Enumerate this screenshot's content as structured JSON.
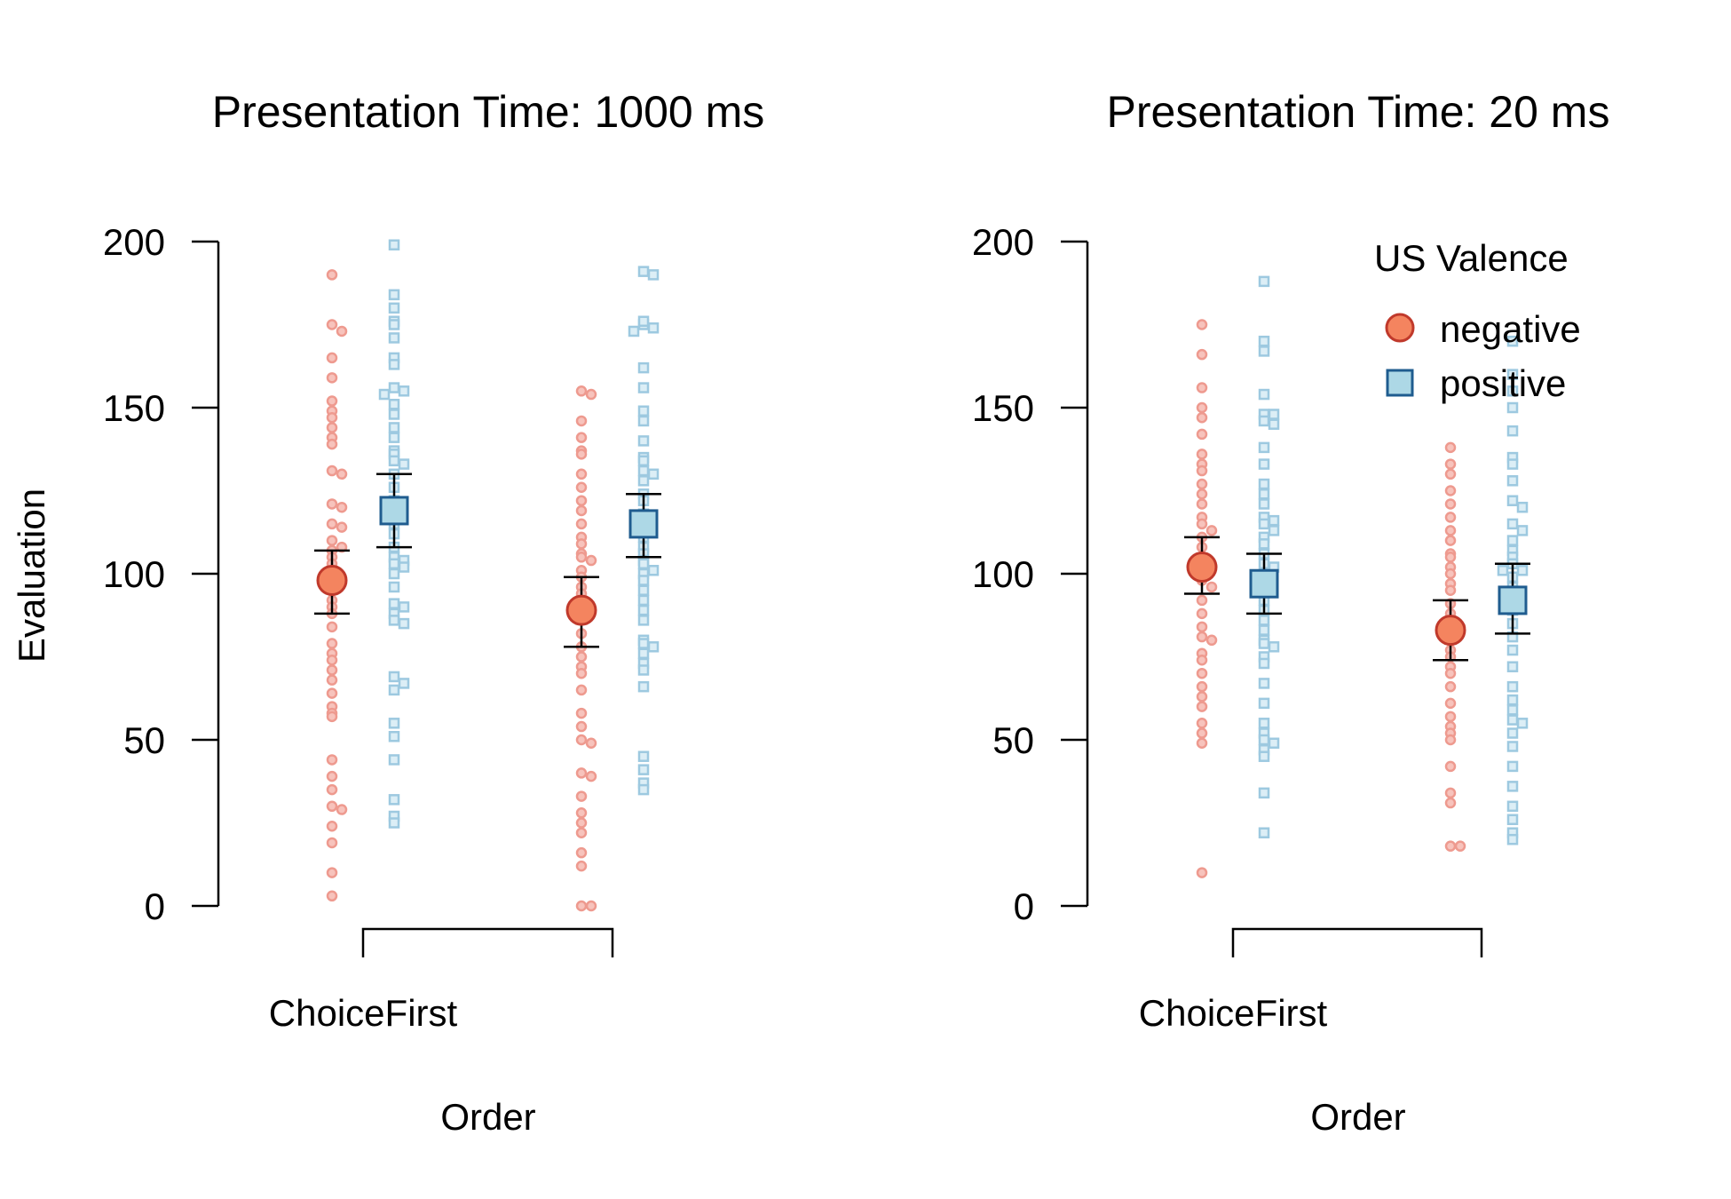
{
  "figure": {
    "ylabel": "Evaluation",
    "xlabel": "Order",
    "legend": {
      "title": "US Valence",
      "placement": "top-right of right panel",
      "entries": [
        {
          "label": "negative",
          "marker": "circle",
          "color": "#F4845F",
          "stroke": "#C0392B"
        },
        {
          "label": "positive",
          "marker": "square",
          "color": "#ADD8E6",
          "stroke": "#1F5C8F"
        }
      ]
    },
    "colors": {
      "negative_points": "#EE9A8F",
      "positive_points": "#9DC9E0",
      "negative_mean_fill": "#F4845F",
      "negative_mean_stroke": "#C0392B",
      "positive_mean_fill": "#ADD8E6",
      "positive_mean_stroke": "#1F5C8F",
      "errorbar": "#000000",
      "axis": "#000000"
    }
  },
  "chart_data": [
    {
      "type": "scatter",
      "title": "Presentation Time: 1000 ms",
      "xlabel": "Order",
      "ylabel": "Evaluation",
      "ylim": [
        0,
        200
      ],
      "yticks": [
        0,
        50,
        100,
        150,
        200
      ],
      "categories": [
        "ChoiceFirst",
        ""
      ],
      "category_tick_labels_shown": [
        "ChoiceFirst"
      ],
      "grid": false,
      "series": [
        {
          "name": "negative",
          "means": [
            98,
            89
          ],
          "error_low": [
            88,
            78
          ],
          "error_high": [
            107,
            99
          ],
          "points": [
            [
              190,
              175,
              173,
              165,
              159,
              152,
              149,
              147,
              144,
              141,
              139,
              131,
              130,
              121,
              120,
              115,
              114,
              110,
              108,
              107,
              105,
              103,
              100,
              98,
              95,
              92,
              90,
              88,
              84,
              79,
              76,
              74,
              71,
              68,
              64,
              60,
              58,
              57,
              44,
              39,
              35,
              30,
              29,
              24,
              19,
              10,
              3
            ],
            [
              155,
              154,
              146,
              141,
              137,
              136,
              130,
              126,
              122,
              119,
              115,
              111,
              109,
              106,
              105,
              104,
              101,
              99,
              96,
              94,
              92,
              90,
              87,
              86,
              82,
              78,
              75,
              72,
              70,
              65,
              58,
              54,
              50,
              49,
              40,
              39,
              33,
              28,
              25,
              22,
              16,
              12,
              0,
              0
            ]
          ]
        },
        {
          "name": "positive",
          "means": [
            119,
            115
          ],
          "error_low": [
            108,
            105
          ],
          "error_high": [
            130,
            124
          ],
          "points": [
            [
              199,
              184,
              180,
              176,
              175,
              171,
              165,
              163,
              156,
              155,
              154,
              151,
              148,
              144,
              141,
              137,
              136,
              134,
              133,
              130,
              126,
              122,
              119,
              117,
              115,
              112,
              108,
              105,
              104,
              103,
              102,
              100,
              96,
              91,
              90,
              88,
              86,
              85,
              69,
              67,
              65,
              55,
              51,
              44,
              32,
              27,
              25
            ],
            [
              191,
              190,
              175,
              174,
              173,
              176,
              162,
              156,
              149,
              146,
              140,
              135,
              134,
              131,
              130,
              128,
              124,
              122,
              118,
              114,
              111,
              108,
              106,
              104,
              103,
              101,
              100,
              98,
              95,
              92,
              89,
              86,
              80,
              79,
              78,
              76,
              73,
              71,
              66,
              45,
              41,
              37,
              35
            ]
          ]
        }
      ]
    },
    {
      "type": "scatter",
      "title": "Presentation Time: 20 ms",
      "xlabel": "Order",
      "ylabel": "",
      "ylim": [
        0,
        200
      ],
      "yticks": [
        0,
        50,
        100,
        150,
        200
      ],
      "categories": [
        "ChoiceFirst",
        ""
      ],
      "category_tick_labels_shown": [
        "ChoiceFirst"
      ],
      "grid": false,
      "series": [
        {
          "name": "negative",
          "means": [
            102,
            83
          ],
          "error_low": [
            94,
            74
          ],
          "error_high": [
            111,
            92
          ],
          "points": [
            [
              175,
              166,
              156,
              150,
              147,
              142,
              136,
              133,
              131,
              127,
              124,
              121,
              117,
              115,
              113,
              111,
              108,
              105,
              102,
              100,
              98,
              96,
              92,
              88,
              84,
              81,
              80,
              76,
              74,
              70,
              66,
              63,
              60,
              55,
              52,
              49,
              10
            ],
            [
              138,
              133,
              130,
              125,
              121,
              117,
              113,
              110,
              106,
              105,
              102,
              100,
              97,
              95,
              91,
              88,
              86,
              84,
              80,
              77,
              75,
              72,
              70,
              66,
              61,
              57,
              54,
              52,
              50,
              42,
              34,
              31,
              18,
              18
            ]
          ]
        },
        {
          "name": "positive",
          "means": [
            97,
            92
          ],
          "error_low": [
            88,
            82
          ],
          "error_high": [
            106,
            103
          ],
          "points": [
            [
              188,
              170,
              167,
              154,
              148,
              148,
              146,
              145,
              138,
              133,
              127,
              124,
              121,
              117,
              116,
              115,
              113,
              111,
              109,
              106,
              103,
              102,
              99,
              95,
              92,
              89,
              86,
              83,
              80,
              79,
              78,
              75,
              73,
              67,
              61,
              55,
              52,
              50,
              49,
              47,
              45,
              34,
              22
            ],
            [
              170,
              160,
              155,
              150,
              143,
              135,
              133,
              128,
              122,
              120,
              115,
              113,
              110,
              107,
              105,
              103,
              101,
              101,
              99,
              96,
              93,
              89,
              85,
              81,
              77,
              72,
              66,
              62,
              59,
              56,
              55,
              52,
              48,
              42,
              36,
              30,
              26,
              22,
              20
            ]
          ]
        }
      ]
    }
  ]
}
